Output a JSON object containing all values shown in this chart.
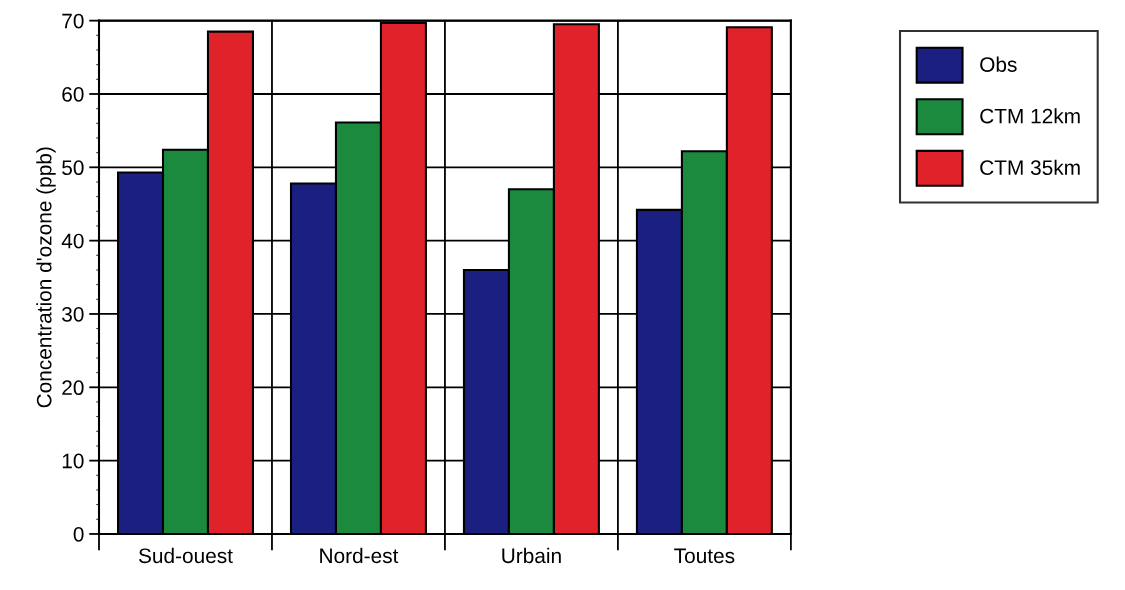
{
  "chart_data": {
    "type": "bar",
    "ylabel": "Concentration d'ozone (ppb)",
    "categories": [
      "Sud-ouest",
      "Nord-est",
      "Urbain",
      "Toutes"
    ],
    "series": [
      {
        "name": "Obs",
        "color": "#1a1f80",
        "values": [
          49.3,
          47.8,
          36.0,
          44.2
        ]
      },
      {
        "name": "CTM 12km",
        "color": "#1b8a3e",
        "values": [
          52.4,
          56.1,
          47.0,
          52.2
        ]
      },
      {
        "name": "CTM 35km",
        "color": "#e0232b",
        "values": [
          68.5,
          69.7,
          69.5,
          69.1
        ]
      }
    ],
    "ylim": [
      0,
      70
    ],
    "yticks": [
      0,
      10,
      20,
      30,
      40,
      50,
      60,
      70
    ],
    "grid": true,
    "legend": "top right"
  }
}
